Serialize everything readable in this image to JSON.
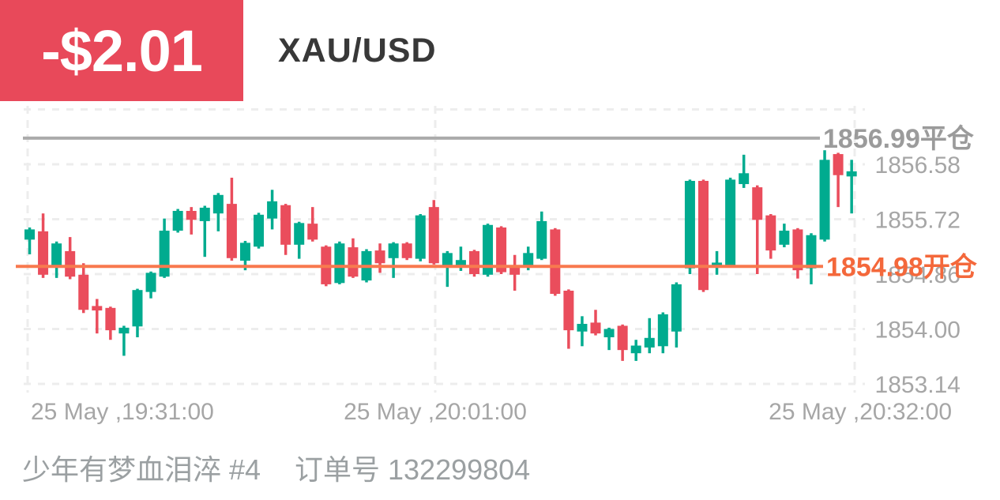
{
  "header": {
    "pnl_badge": {
      "text": "-$2.01",
      "bg_color": "#e8495a",
      "text_color": "#ffffff"
    },
    "symbol": "XAU/USD"
  },
  "chart_data": {
    "type": "candlestick",
    "symbol": "XAU/USD",
    "ylim": [
      1853.0,
      1857.6
    ],
    "grid": true,
    "price_ticks": [
      {
        "price": 1857.44,
        "label": ""
      },
      {
        "price": 1856.58,
        "label": "1856.58"
      },
      {
        "price": 1855.72,
        "label": "1855.72"
      },
      {
        "price": 1854.86,
        "label": "1854.86"
      },
      {
        "price": 1854.0,
        "label": "1854.00"
      },
      {
        "price": 1853.14,
        "label": "1853.14"
      }
    ],
    "time_labels": [
      "25 May ,19:31:00",
      "25 May ,20:01:00",
      "25 May ,20:32:00"
    ],
    "markers": {
      "close": {
        "price": 1856.99,
        "label": "1856.99平仓",
        "line_color": "#ababab",
        "text_color": "#9b9b9b"
      },
      "open": {
        "price": 1854.98,
        "label": "1854.98开仓",
        "line_color": "#f8794e",
        "text_color": "#f4683b"
      }
    },
    "colors": {
      "up": "#00ab8f",
      "down": "#ea4d5c",
      "axis_text": "#a6a6a6",
      "grid": "#ededed"
    },
    "candles_ohlc": [
      [
        1855.4,
        1855.59,
        1855.17,
        1855.56
      ],
      [
        1855.53,
        1855.81,
        1854.8,
        1854.85
      ],
      [
        1854.98,
        1855.37,
        1854.8,
        1855.34
      ],
      [
        1855.22,
        1855.44,
        1854.78,
        1854.82
      ],
      [
        1854.85,
        1855.03,
        1854.25,
        1854.3
      ],
      [
        1854.36,
        1854.47,
        1853.93,
        1854.29
      ],
      [
        1854.33,
        1854.35,
        1853.83,
        1853.98
      ],
      [
        1853.93,
        1854.05,
        1853.58,
        1854.02
      ],
      [
        1854.04,
        1854.63,
        1853.87,
        1854.61
      ],
      [
        1854.58,
        1854.9,
        1854.48,
        1854.88
      ],
      [
        1854.82,
        1855.73,
        1854.8,
        1855.54
      ],
      [
        1855.54,
        1855.88,
        1855.51,
        1855.85
      ],
      [
        1855.85,
        1855.91,
        1855.48,
        1855.71
      ],
      [
        1855.69,
        1855.93,
        1855.13,
        1855.9
      ],
      [
        1855.81,
        1856.13,
        1855.53,
        1856.1
      ],
      [
        1855.96,
        1856.37,
        1855.07,
        1855.11
      ],
      [
        1855.07,
        1855.38,
        1854.92,
        1855.35
      ],
      [
        1855.29,
        1855.82,
        1855.26,
        1855.79
      ],
      [
        1855.73,
        1856.18,
        1855.56,
        1856.0
      ],
      [
        1855.94,
        1855.96,
        1855.16,
        1855.32
      ],
      [
        1855.32,
        1855.68,
        1855.1,
        1855.66
      ],
      [
        1855.65,
        1855.91,
        1855.37,
        1855.4
      ],
      [
        1855.29,
        1855.31,
        1854.67,
        1854.7
      ],
      [
        1854.72,
        1855.37,
        1854.7,
        1855.34
      ],
      [
        1855.28,
        1855.42,
        1854.8,
        1854.82
      ],
      [
        1854.76,
        1855.25,
        1854.73,
        1855.22
      ],
      [
        1855.23,
        1855.34,
        1854.88,
        1855.03
      ],
      [
        1855.11,
        1855.36,
        1854.8,
        1855.34
      ],
      [
        1855.34,
        1855.36,
        1855.08,
        1855.11
      ],
      [
        1855.1,
        1855.8,
        1855.06,
        1855.78
      ],
      [
        1855.91,
        1856.02,
        1855.01,
        1855.03
      ],
      [
        1854.97,
        1855.22,
        1854.66,
        1855.19
      ],
      [
        1854.98,
        1855.29,
        1854.91,
        1855.08
      ],
      [
        1855.22,
        1855.24,
        1854.82,
        1854.86
      ],
      [
        1854.85,
        1855.65,
        1854.82,
        1855.63
      ],
      [
        1855.59,
        1855.61,
        1854.86,
        1854.89
      ],
      [
        1854.97,
        1855.16,
        1854.6,
        1854.85
      ],
      [
        1854.97,
        1855.29,
        1854.92,
        1855.19
      ],
      [
        1855.1,
        1855.84,
        1855.08,
        1855.69
      ],
      [
        1855.56,
        1855.58,
        1854.52,
        1854.55
      ],
      [
        1854.6,
        1854.62,
        1853.69,
        1853.98
      ],
      [
        1853.96,
        1854.2,
        1853.73,
        1854.08
      ],
      [
        1854.1,
        1854.3,
        1853.9,
        1853.93
      ],
      [
        1853.87,
        1854.02,
        1853.67,
        1854.0
      ],
      [
        1854.05,
        1854.07,
        1853.5,
        1853.67
      ],
      [
        1853.62,
        1853.83,
        1853.5,
        1853.74
      ],
      [
        1853.71,
        1854.17,
        1853.62,
        1853.86
      ],
      [
        1853.73,
        1854.26,
        1853.62,
        1854.23
      ],
      [
        1853.96,
        1854.73,
        1853.71,
        1854.7
      ],
      [
        1854.95,
        1856.34,
        1854.86,
        1856.32
      ],
      [
        1856.32,
        1856.34,
        1854.58,
        1854.61
      ],
      [
        1854.98,
        1855.22,
        1854.85,
        1855.04
      ],
      [
        1855.0,
        1856.37,
        1854.97,
        1856.34
      ],
      [
        1856.27,
        1856.73,
        1856.21,
        1856.44
      ],
      [
        1856.22,
        1856.25,
        1854.86,
        1855.71
      ],
      [
        1855.78,
        1855.8,
        1855.1,
        1855.23
      ],
      [
        1855.32,
        1855.65,
        1855.28,
        1855.54
      ],
      [
        1855.56,
        1855.58,
        1854.79,
        1854.92
      ],
      [
        1854.95,
        1855.5,
        1854.7,
        1855.47
      ],
      [
        1855.4,
        1856.8,
        1855.37,
        1856.65
      ],
      [
        1856.74,
        1856.76,
        1855.91,
        1856.41
      ],
      [
        1856.39,
        1856.65,
        1855.81,
        1856.47
      ]
    ]
  },
  "footer": {
    "position_name": "少年有梦血泪淬 #4",
    "order_number": "订单号 132299804"
  }
}
